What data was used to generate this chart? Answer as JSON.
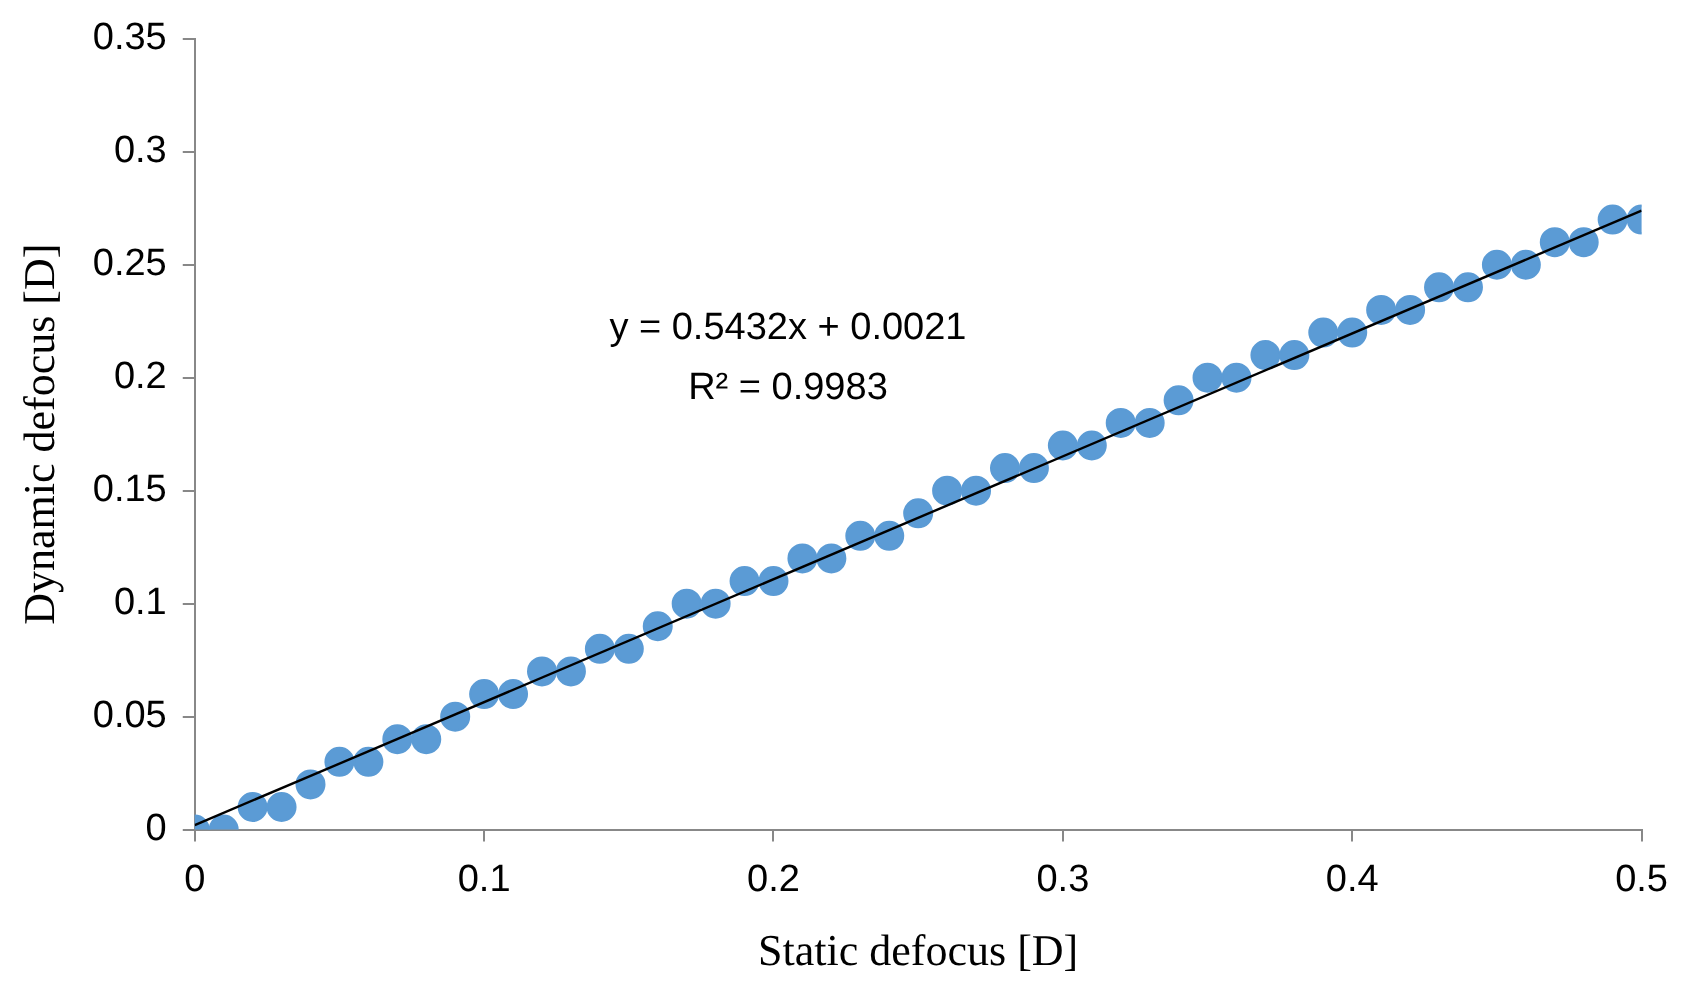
{
  "chart_data": {
    "type": "scatter",
    "xlabel": "Static defocus [D]",
    "ylabel": "Dynamic defocus [D]",
    "xlim": [
      0,
      0.5
    ],
    "xticks": [
      0,
      0.1,
      0.2,
      0.3,
      0.4,
      0.5
    ],
    "ylim": [
      0,
      0.35
    ],
    "yticks": [
      0,
      0.05,
      0.1,
      0.15,
      0.2,
      0.25,
      0.3,
      0.35
    ],
    "grid": false,
    "legend": false,
    "annotations": [
      "y = 0.5432x + 0.0021",
      "R² = 0.9983"
    ],
    "series": [
      {
        "color": "#5b9bd5",
        "marker": "circle",
        "x": [
          0,
          0.01,
          0.02,
          0.03,
          0.04,
          0.05,
          0.06,
          0.07,
          0.08,
          0.09,
          0.1,
          0.11,
          0.12,
          0.13,
          0.14,
          0.15,
          0.16,
          0.17,
          0.18,
          0.19,
          0.2,
          0.21,
          0.22,
          0.23,
          0.24,
          0.25,
          0.26,
          0.27,
          0.28,
          0.29,
          0.3,
          0.31,
          0.32,
          0.33,
          0.34,
          0.35,
          0.36,
          0.37,
          0.38,
          0.39,
          0.4,
          0.41,
          0.42,
          0.43,
          0.44,
          0.45,
          0.46,
          0.47,
          0.48,
          0.49,
          0.5
        ],
        "values": [
          0,
          0,
          0.01,
          0.01,
          0.02,
          0.03,
          0.03,
          0.04,
          0.04,
          0.05,
          0.06,
          0.06,
          0.07,
          0.07,
          0.08,
          0.08,
          0.09,
          0.1,
          0.1,
          0.11,
          0.11,
          0.12,
          0.12,
          0.13,
          0.13,
          0.14,
          0.15,
          0.15,
          0.16,
          0.16,
          0.17,
          0.17,
          0.18,
          0.18,
          0.19,
          0.2,
          0.2,
          0.21,
          0.21,
          0.22,
          0.22,
          0.23,
          0.23,
          0.24,
          0.24,
          0.25,
          0.25,
          0.26,
          0.26,
          0.27,
          0.27
        ]
      },
      {
        "type": "line",
        "color": "#000000",
        "x": [
          0,
          0.5
        ],
        "values": [
          0.002,
          0.274
        ],
        "marker": "none"
      }
    ]
  }
}
